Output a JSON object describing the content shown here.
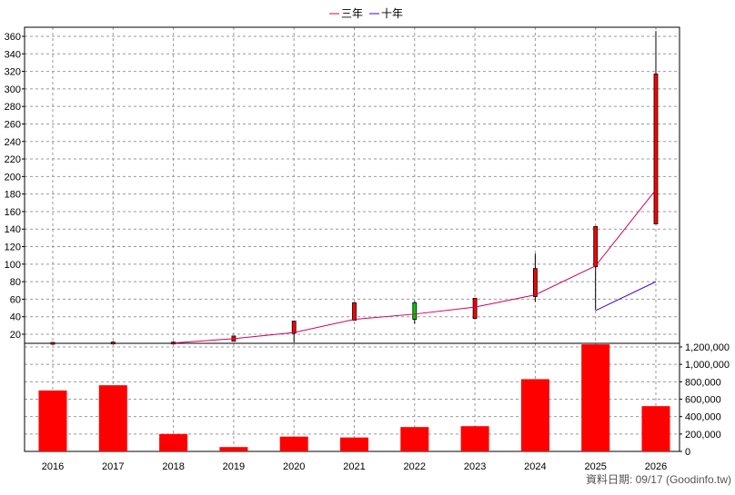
{
  "chart_data": {
    "type": "candlestick-with-volume",
    "categories": [
      "2016",
      "2017",
      "2018",
      "2019",
      "2020",
      "2021",
      "2022",
      "2023",
      "2024",
      "2025",
      "2026"
    ],
    "legend": [
      {
        "name": "三年",
        "color": "#d0005c"
      },
      {
        "name": "十年",
        "color": "#4a00d8"
      }
    ],
    "price_axis": {
      "min": 20,
      "max": 360,
      "step": 20
    },
    "volume_axis": {
      "min": 0,
      "max": 1200000,
      "step": 200000,
      "tick_labels": [
        "0",
        "200,000",
        "400,000",
        "600,000",
        "800,000",
        "1,000,000",
        "1,200,000"
      ]
    },
    "candles": [
      {
        "year": "2016",
        "open": 8,
        "close": 8,
        "high": 8,
        "low": 8
      },
      {
        "year": "2017",
        "open": 8,
        "close": 11,
        "high": 12,
        "low": 8
      },
      {
        "year": "2018",
        "open": 10,
        "close": 11,
        "high": 12,
        "low": 10
      },
      {
        "year": "2019",
        "open": 12,
        "close": 18,
        "high": 18,
        "low": 12
      },
      {
        "year": "2020",
        "open": 21,
        "close": 35,
        "high": 35,
        "low": 10
      },
      {
        "year": "2021",
        "open": 36,
        "close": 56,
        "high": 56,
        "low": 36
      },
      {
        "year": "2022",
        "open": 56,
        "close": 37,
        "high": 58,
        "low": 32
      },
      {
        "year": "2023",
        "open": 38,
        "close": 61,
        "high": 61,
        "low": 37
      },
      {
        "year": "2024",
        "open": 63,
        "close": 95,
        "high": 112,
        "low": 57
      },
      {
        "year": "2025",
        "open": 97,
        "close": 143,
        "high": 143,
        "low": 48
      },
      {
        "year": "2026",
        "open": 146,
        "close": 317,
        "high": 366,
        "low": 146
      }
    ],
    "series": [
      {
        "name": "三年",
        "x": [
          "2018",
          "2019",
          "2020",
          "2021",
          "2022",
          "2023",
          "2024",
          "2025",
          "2026"
        ],
        "values": [
          10,
          15,
          22,
          37,
          43,
          51,
          65,
          98,
          185
        ]
      },
      {
        "name": "十年",
        "x": [
          "2025",
          "2026"
        ],
        "values": [
          47,
          80
        ]
      }
    ],
    "volume": [
      700000,
      760000,
      200000,
      50000,
      170000,
      160000,
      280000,
      290000,
      830000,
      1230000,
      520000
    ],
    "up_color": "#ff0000",
    "down_color": "#00cc00",
    "grid": true
  },
  "footer": {
    "source_text": "資料日期: 09/17 (Goodinfo.tw)"
  }
}
